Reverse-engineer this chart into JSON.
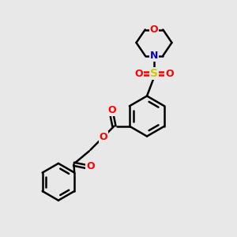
{
  "background_color": "#e8e8e8",
  "bond_color": "#000000",
  "oxygen_color": "#ff0000",
  "nitrogen_color": "#0000cc",
  "sulfur_color": "#cccc00",
  "line_width": 1.8,
  "figsize": [
    3.0,
    3.0
  ],
  "dpi": 100,
  "xlim": [
    0,
    10
  ],
  "ylim": [
    0,
    10
  ]
}
